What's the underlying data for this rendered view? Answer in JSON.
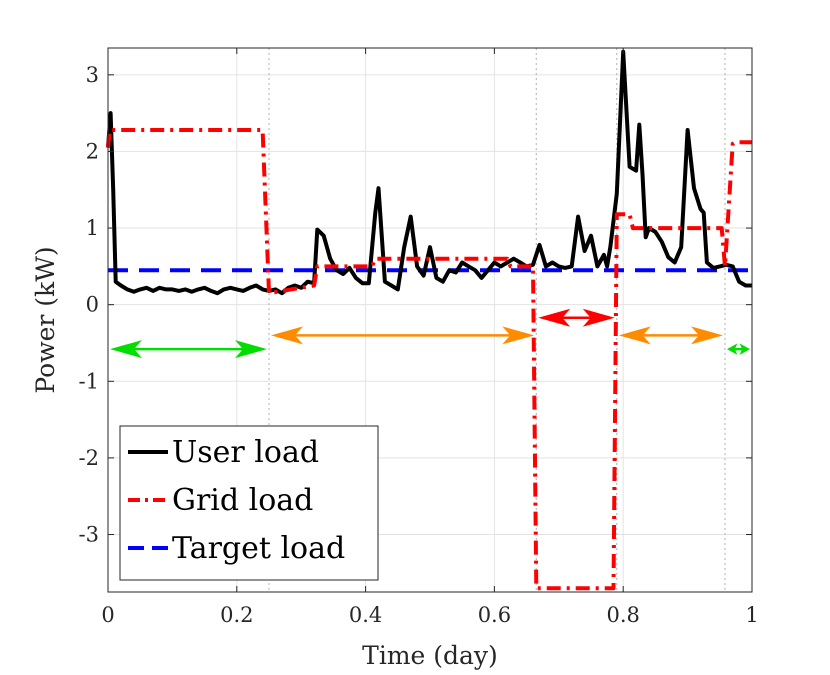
{
  "chart_data": {
    "type": "line",
    "title": "",
    "xlabel": "Time (day)",
    "ylabel": "Power (kW)",
    "xlim": [
      0,
      1
    ],
    "ylim": [
      -3.75,
      3.35
    ],
    "xticks": [
      "0",
      "0.2",
      "0.4",
      "0.6",
      "0.8",
      "1"
    ],
    "yticks": [
      "-3",
      "-2",
      "-1",
      "0",
      "1",
      "2",
      "3"
    ],
    "grid": true,
    "legend_position": "bottom-left",
    "series": [
      {
        "name": "User load",
        "color": "#000000",
        "style": "solid",
        "x": [
          0.0,
          0.004,
          0.008,
          0.012,
          0.02,
          0.03,
          0.04,
          0.05,
          0.06,
          0.07,
          0.08,
          0.09,
          0.1,
          0.11,
          0.12,
          0.13,
          0.14,
          0.15,
          0.16,
          0.17,
          0.18,
          0.19,
          0.2,
          0.21,
          0.22,
          0.23,
          0.24,
          0.25,
          0.26,
          0.27,
          0.28,
          0.29,
          0.3,
          0.31,
          0.32,
          0.325,
          0.335,
          0.345,
          0.355,
          0.365,
          0.375,
          0.385,
          0.395,
          0.405,
          0.415,
          0.42,
          0.43,
          0.44,
          0.45,
          0.46,
          0.47,
          0.48,
          0.49,
          0.5,
          0.51,
          0.52,
          0.53,
          0.54,
          0.55,
          0.56,
          0.57,
          0.58,
          0.59,
          0.6,
          0.61,
          0.62,
          0.63,
          0.64,
          0.65,
          0.66,
          0.67,
          0.68,
          0.69,
          0.7,
          0.71,
          0.72,
          0.73,
          0.74,
          0.75,
          0.76,
          0.77,
          0.775,
          0.78,
          0.79,
          0.8,
          0.81,
          0.82,
          0.825,
          0.83,
          0.835,
          0.84,
          0.85,
          0.86,
          0.87,
          0.88,
          0.89,
          0.9,
          0.91,
          0.92,
          0.925,
          0.93,
          0.94,
          0.95,
          0.96,
          0.97,
          0.98,
          0.99,
          1.0
        ],
        "y": [
          2.05,
          2.5,
          1.5,
          0.3,
          0.25,
          0.2,
          0.17,
          0.2,
          0.22,
          0.18,
          0.22,
          0.2,
          0.2,
          0.18,
          0.2,
          0.17,
          0.2,
          0.22,
          0.18,
          0.15,
          0.2,
          0.22,
          0.2,
          0.18,
          0.22,
          0.25,
          0.2,
          0.18,
          0.2,
          0.15,
          0.22,
          0.25,
          0.22,
          0.3,
          0.28,
          0.98,
          0.9,
          0.6,
          0.45,
          0.4,
          0.48,
          0.35,
          0.28,
          0.28,
          1.2,
          1.52,
          0.3,
          0.25,
          0.2,
          0.75,
          1.15,
          0.5,
          0.38,
          0.75,
          0.35,
          0.3,
          0.45,
          0.42,
          0.55,
          0.5,
          0.45,
          0.35,
          0.45,
          0.55,
          0.5,
          0.55,
          0.6,
          0.55,
          0.5,
          0.52,
          0.78,
          0.5,
          0.55,
          0.5,
          0.48,
          0.5,
          1.15,
          0.7,
          0.9,
          0.5,
          0.65,
          0.5,
          0.75,
          1.45,
          3.3,
          1.8,
          1.75,
          2.35,
          1.7,
          0.88,
          1.0,
          0.95,
          0.82,
          0.62,
          0.55,
          0.75,
          2.28,
          1.52,
          1.25,
          1.2,
          0.55,
          0.48,
          0.5,
          0.52,
          0.5,
          0.3,
          0.25,
          0.25
        ]
      },
      {
        "name": "Grid load",
        "color": "#ff0000",
        "style": "dash-dot",
        "x": [
          0.0,
          0.003,
          0.24,
          0.25,
          0.32,
          0.325,
          0.41,
          0.415,
          0.62,
          0.625,
          0.66,
          0.665,
          0.785,
          0.79,
          0.81,
          0.815,
          0.953,
          0.958,
          0.97,
          0.975,
          1.0
        ],
        "y": [
          2.05,
          2.28,
          2.28,
          0.15,
          0.25,
          0.5,
          0.5,
          0.6,
          0.6,
          0.5,
          0.5,
          -3.7,
          -3.7,
          1.18,
          1.18,
          1.0,
          1.0,
          0.5,
          2.1,
          2.12,
          2.12
        ]
      },
      {
        "name": "Target load",
        "color": "#0000ff",
        "style": "dashed",
        "x": [
          0.0,
          1.0
        ],
        "y": [
          0.45,
          0.45
        ]
      }
    ],
    "vertical_lines_x": [
      0.25,
      0.665,
      0.79,
      0.958
    ],
    "arrows": [
      {
        "x_start": 0.0,
        "x_end": 0.25,
        "y": -0.58,
        "color": "#00dd00"
      },
      {
        "x_start": 0.25,
        "x_end": 0.665,
        "y": -0.4,
        "color": "#ff8c00"
      },
      {
        "x_start": 0.665,
        "x_end": 0.79,
        "y": -0.17,
        "color": "#ff0000"
      },
      {
        "x_start": 0.79,
        "x_end": 0.958,
        "y": -0.4,
        "color": "#ff8c00"
      },
      {
        "x_start": 0.958,
        "x_end": 1.0,
        "y": -0.58,
        "color": "#00dd00"
      }
    ]
  }
}
